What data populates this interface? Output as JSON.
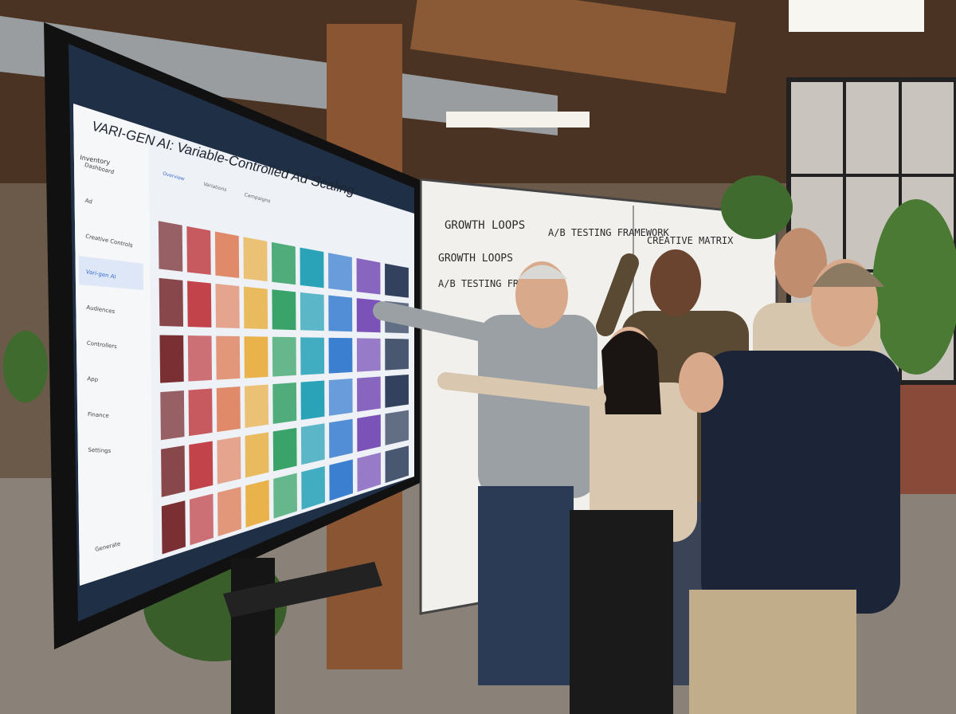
{
  "screen": {
    "app_title": "VARI-GEN AI: Variable-Controlled Ad Scaling",
    "tabs": [
      "Overview",
      "Variations",
      "Campaigns"
    ],
    "sidebar": {
      "heading": "Inventory",
      "items": [
        "Dashboard",
        "Ad",
        "Creative Controls",
        "Vari-gen AI",
        "Audiences",
        "Controllers",
        "App",
        "Finance",
        "Settings"
      ],
      "active_index": 3
    },
    "footer_link": "Generate"
  },
  "whiteboard": {
    "panel1_title": "GROWTH LOOPS",
    "panel1_items": [
      "GROWTH LOOPS",
      "A/B TESTING FRAMEWORK"
    ],
    "panel2_title": "A/B TESTING FRAMEWORK",
    "panel3_title": "CREATIVE MATRIX"
  },
  "colors": {
    "tile_columns": [
      "#7a2f33",
      "#c2444a",
      "#e08a6a",
      "#e9b24a",
      "#3aa36a",
      "#2aa3b8",
      "#3b7fd0",
      "#7a52b8",
      "#33415e"
    ],
    "screen_bg": "#eef1f5",
    "accent": "#3b6fd0"
  }
}
